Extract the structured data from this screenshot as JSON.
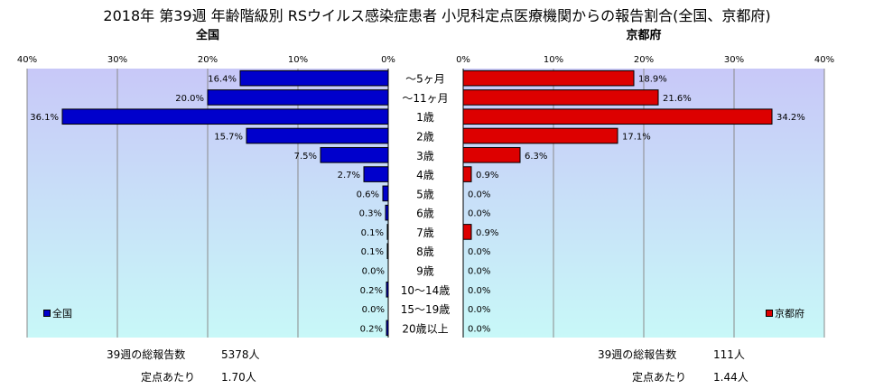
{
  "title": "2018年 第39週 年齢階級別 RSウイルス感染症患者 小児科定点医療機関からの報告割合(全国、京都府)",
  "colors": {
    "national": "#0000cc",
    "kyoto": "#dd0000",
    "plot_bg_top": "#c8c8f8",
    "plot_bg_bottom": "#c8f8f8"
  },
  "chart_data": [
    {
      "type": "bar",
      "orientation": "horizontal",
      "title": "全国",
      "categories": [
        "～5ヶ月",
        "～11ヶ月",
        "1歳",
        "2歳",
        "3歳",
        "4歳",
        "5歳",
        "6歳",
        "7歳",
        "8歳",
        "9歳",
        "10～14歳",
        "15～19歳",
        "20歳以上"
      ],
      "series": [
        {
          "name": "全国",
          "values": [
            16.4,
            20.0,
            36.1,
            15.7,
            7.5,
            2.7,
            0.6,
            0.3,
            0.1,
            0.1,
            0.0,
            0.2,
            0.0,
            0.2
          ],
          "labels": [
            "16.4%",
            "20.0%",
            "36.1%",
            "15.7%",
            "7.5%",
            "2.7%",
            "0.6%",
            "0.3%",
            "0.1%",
            "0.1%",
            "0.0%",
            "0.2%",
            "0.0%",
            "0.2%"
          ]
        }
      ],
      "xlim": [
        0,
        40
      ],
      "x_reversed": true,
      "ticks": [
        "40%",
        "30%",
        "20%",
        "10%",
        "0%"
      ],
      "grid": true,
      "legend_position": "bottom-left"
    },
    {
      "type": "bar",
      "orientation": "horizontal",
      "title": "京都府",
      "categories": [
        "～5ヶ月",
        "～11ヶ月",
        "1歳",
        "2歳",
        "3歳",
        "4歳",
        "5歳",
        "6歳",
        "7歳",
        "8歳",
        "9歳",
        "10～14歳",
        "15～19歳",
        "20歳以上"
      ],
      "series": [
        {
          "name": "京都府",
          "values": [
            18.9,
            21.6,
            34.2,
            17.1,
            6.3,
            0.9,
            0.0,
            0.0,
            0.9,
            0.0,
            0.0,
            0.0,
            0.0,
            0.0
          ],
          "labels": [
            "18.9%",
            "21.6%",
            "34.2%",
            "17.1%",
            "6.3%",
            "0.9%",
            "0.0%",
            "0.0%",
            "0.9%",
            "0.0%",
            "0.0%",
            "0.0%",
            "0.0%",
            "0.0%"
          ]
        }
      ],
      "xlim": [
        0,
        40
      ],
      "ticks": [
        "0%",
        "10%",
        "20%",
        "30%",
        "40%"
      ],
      "grid": true,
      "legend_position": "bottom-right"
    }
  ],
  "stats": {
    "national": {
      "total_label": "39週の総報告数",
      "total_value": "5378人",
      "per_label": "定点あたり",
      "per_value": "1.70人"
    },
    "kyoto": {
      "total_label": "39週の総報告数",
      "total_value": "111人",
      "per_label": "定点あたり",
      "per_value": "1.44人"
    }
  }
}
